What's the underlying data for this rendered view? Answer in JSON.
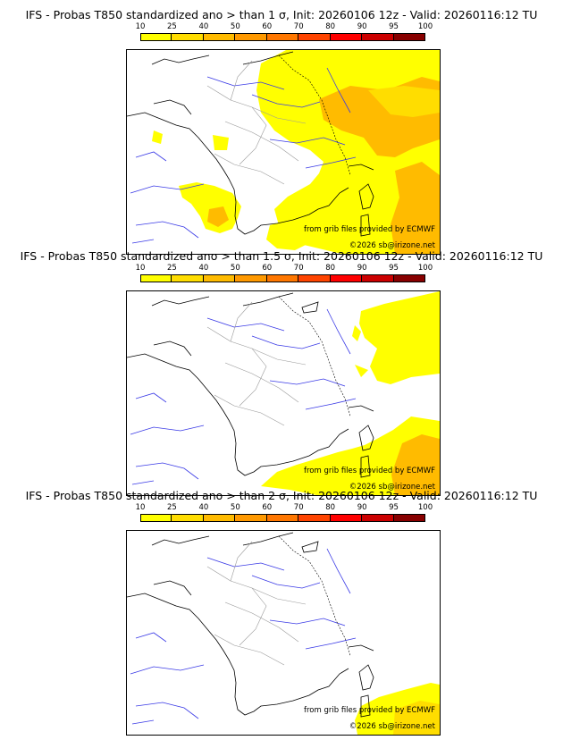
{
  "colorbar": {
    "ticks": [
      "10",
      "25",
      "40",
      "50",
      "60",
      "70",
      "80",
      "90",
      "95",
      "100"
    ],
    "colors": [
      "#ffff00",
      "#ffdd00",
      "#ffbb00",
      "#ff9900",
      "#ff7700",
      "#ff4400",
      "#ff0000",
      "#cc0000",
      "#880000"
    ]
  },
  "panels": [
    {
      "title": "IFS - Probas T850  standardized ano > than 1 σ, Init: 20260106 12z - Valid: 20260116:12 TU",
      "credit_source": "from grib files provided by ECMWF",
      "credit_copyright": "©2026 sb@irizone.net"
    },
    {
      "title": "IFS - Probas T850  standardized ano > than 1.5 σ, Init: 20260106 12z - Valid: 20260116:12 TU",
      "credit_source": "from grib files provided by ECMWF",
      "credit_copyright": "©2026 sb@irizone.net"
    },
    {
      "title": "IFS - Probas T850  standardized ano > than 2 σ, Init: 20260106 12z - Valid: 20260116:12 TU",
      "credit_source": "from grib files provided by ECMWF",
      "credit_copyright": "©2026 sb@irizone.net"
    }
  ]
}
